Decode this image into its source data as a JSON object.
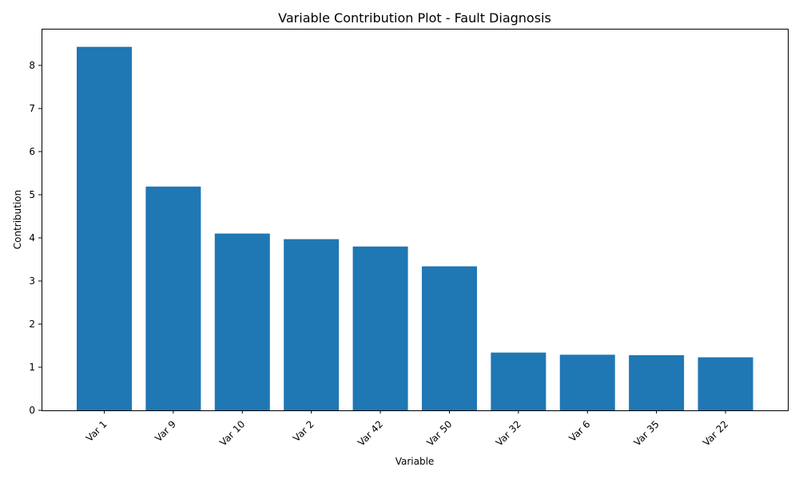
{
  "chart_data": {
    "type": "bar",
    "title": "Variable Contribution Plot - Fault Diagnosis",
    "xlabel": "Variable",
    "ylabel": "Contribution",
    "categories": [
      "Var 1",
      "Var 9",
      "Var 10",
      "Var 2",
      "Var 42",
      "Var 50",
      "Var 32",
      "Var 6",
      "Var 35",
      "Var 22"
    ],
    "values": [
      8.43,
      5.19,
      4.1,
      3.97,
      3.8,
      3.34,
      1.34,
      1.29,
      1.28,
      1.23
    ],
    "ylim": [
      0,
      8.85
    ],
    "yticks": [
      "0",
      "1",
      "2",
      "3",
      "4",
      "5",
      "6",
      "7",
      "8"
    ],
    "grid": false,
    "legend": "none",
    "bar_color": "#1f77b4"
  }
}
